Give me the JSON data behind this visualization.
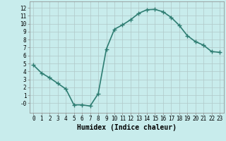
{
  "x": [
    0,
    1,
    2,
    3,
    4,
    5,
    6,
    7,
    8,
    9,
    10,
    11,
    12,
    13,
    14,
    15,
    16,
    17,
    18,
    19,
    20,
    21,
    22,
    23
  ],
  "y": [
    4.8,
    3.8,
    3.2,
    2.5,
    1.8,
    -0.2,
    -0.2,
    -0.35,
    1.2,
    6.8,
    9.3,
    9.85,
    10.5,
    11.3,
    11.75,
    11.8,
    11.5,
    10.8,
    9.8,
    8.5,
    7.75,
    7.3,
    6.5,
    6.4
  ],
  "line_color": "#2e7d72",
  "bg_color": "#c8ecec",
  "grid_color": "#b0c8c8",
  "xlabel": "Humidex (Indice chaleur)",
  "xlim": [
    -0.5,
    23.5
  ],
  "ylim": [
    -1.2,
    12.8
  ],
  "yticks": [
    0,
    1,
    2,
    3,
    4,
    5,
    6,
    7,
    8,
    9,
    10,
    11,
    12
  ],
  "ytick_labels": [
    "-0",
    "1",
    "2",
    "3",
    "4",
    "5",
    "6",
    "7",
    "8",
    "9",
    "10",
    "11",
    "12"
  ],
  "xticks": [
    0,
    1,
    2,
    3,
    4,
    5,
    6,
    7,
    8,
    9,
    10,
    11,
    12,
    13,
    14,
    15,
    16,
    17,
    18,
    19,
    20,
    21,
    22,
    23
  ],
  "marker": "+",
  "linewidth": 1.2,
  "markersize": 4,
  "markeredgewidth": 1.0,
  "xlabel_fontsize": 7,
  "tick_fontsize": 5.5
}
